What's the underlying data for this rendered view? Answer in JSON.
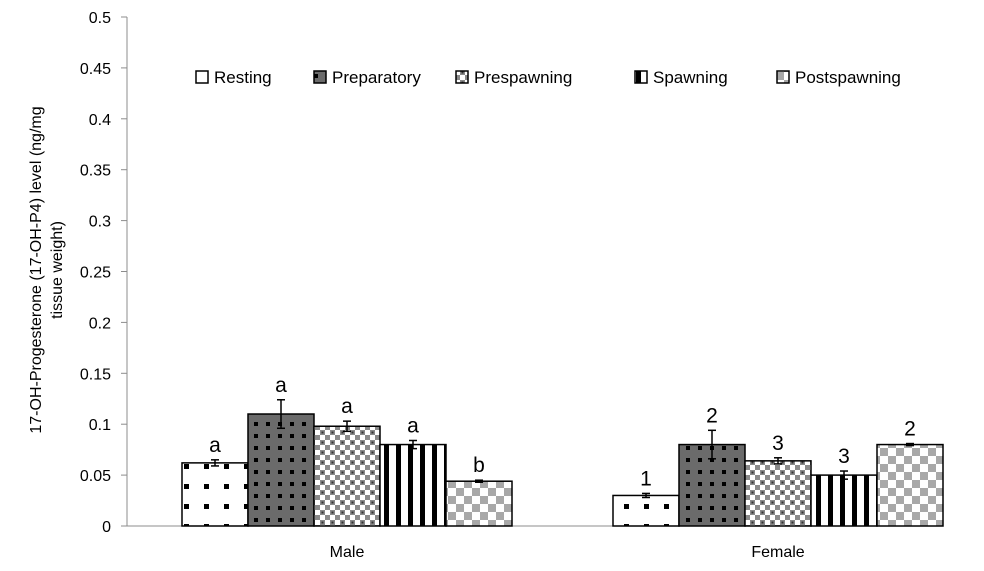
{
  "chart_data": {
    "type": "bar",
    "categories": [
      "Male",
      "Female"
    ],
    "ylabel_lines": [
      "17-OH-Progesterone (17-OH-P4) level (ng/mg",
      "tissue weight)"
    ],
    "ylim": [
      0,
      0.5
    ],
    "yticks": [
      "0",
      "0.05",
      "0.1",
      "0.15",
      "0.2",
      "0.25",
      "0.3",
      "0.35",
      "0.4",
      "0.45",
      "0.5"
    ],
    "grid": false,
    "legend_position": "top",
    "series": [
      {
        "name": "Resting",
        "values": [
          0.062,
          0.03
        ],
        "errors": [
          0.003,
          0.002
        ],
        "labels": [
          "a",
          "1"
        ],
        "pattern": "resting",
        "color": "#000000"
      },
      {
        "name": "Preparatory",
        "values": [
          0.11,
          0.08
        ],
        "errors": [
          0.014,
          0.014
        ],
        "labels": [
          "a",
          "2"
        ],
        "pattern": "preparatory",
        "color": "#555555"
      },
      {
        "name": "Prespawning",
        "values": [
          0.098,
          0.064
        ],
        "errors": [
          0.005,
          0.003
        ],
        "labels": [
          "a",
          "3"
        ],
        "pattern": "prespawning",
        "color": "#888888"
      },
      {
        "name": "Spawning",
        "values": [
          0.08,
          0.05
        ],
        "errors": [
          0.004,
          0.004
        ],
        "labels": [
          "a",
          "3"
        ],
        "pattern": "spawning",
        "color": "#000000"
      },
      {
        "name": "Postspawning",
        "values": [
          0.044,
          0.08
        ],
        "errors": [
          0.001,
          0.001
        ],
        "labels": [
          "b",
          "2"
        ],
        "pattern": "postspawning",
        "color": "#999999"
      }
    ]
  }
}
